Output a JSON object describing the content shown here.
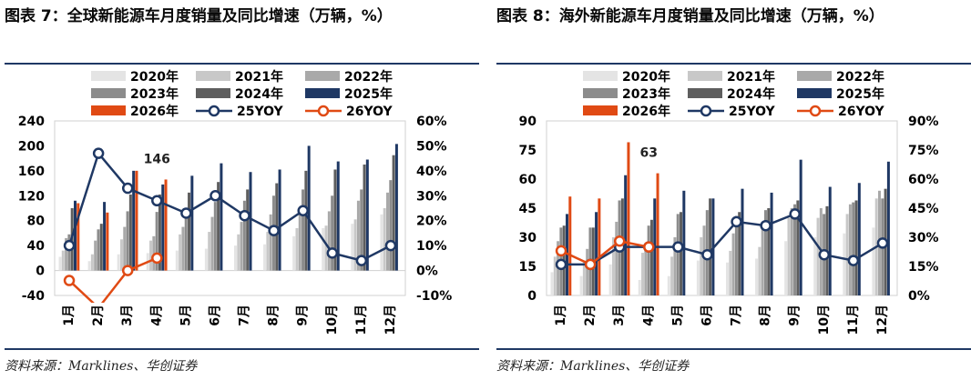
{
  "colors": {
    "2020": "#e4e4e4",
    "2021": "#c8c8c8",
    "2022": "#a9a9a9",
    "2023": "#8c8c8c",
    "2024": "#5e5e5e",
    "2025": "#1f3864",
    "2026": "#e04a14",
    "rule": "#1f3864"
  },
  "chart_data": [
    {
      "type": "bar",
      "title": "图表 7：全球新能源车月度销量及同比增速（万辆，%）",
      "source": "资料来源：Marklines、华创证券",
      "categories": [
        "1月",
        "2月",
        "3月",
        "4月",
        "5月",
        "6月",
        "7月",
        "8月",
        "9月",
        "10月",
        "11月",
        "12月"
      ],
      "ylim": [
        -40,
        240
      ],
      "yticks": [
        "240",
        "200",
        "160",
        "120",
        "80",
        "40",
        "0",
        "-40"
      ],
      "y2lim": [
        -10,
        60
      ],
      "y2ticks": [
        "60%",
        "50%",
        "40%",
        "30%",
        "20%",
        "10%",
        "0%",
        "-10%"
      ],
      "series": [
        {
          "name": "2020年",
          "values": [
            22,
            15,
            26,
            28,
            32,
            35,
            40,
            42,
            55,
            68,
            75,
            90
          ]
        },
        {
          "name": "2021年",
          "values": [
            32,
            26,
            50,
            48,
            58,
            62,
            58,
            62,
            68,
            72,
            82,
            100
          ]
        },
        {
          "name": "2022年",
          "values": [
            52,
            48,
            70,
            55,
            70,
            86,
            78,
            90,
            95,
            95,
            112,
            125
          ]
        },
        {
          "name": "2023年",
          "values": [
            58,
            66,
            95,
            94,
            98,
            110,
            112,
            120,
            130,
            120,
            130,
            145
          ]
        },
        {
          "name": "2024年",
          "values": [
            100,
            75,
            122,
            122,
            125,
            142,
            130,
            140,
            160,
            162,
            170,
            185
          ]
        },
        {
          "name": "2025年",
          "values": [
            112,
            110,
            160,
            138,
            152,
            172,
            158,
            162,
            200,
            175,
            178,
            203
          ]
        },
        {
          "name": "2026年",
          "values": [
            108,
            93,
            160,
            146,
            null,
            null,
            null,
            null,
            null,
            null,
            null,
            null
          ]
        }
      ],
      "yoy": [
        {
          "name": "25YOY",
          "axis": "right",
          "values": [
            10,
            47,
            33,
            28,
            23,
            30,
            22,
            16,
            24,
            7,
            4,
            10
          ]
        },
        {
          "name": "26YOY",
          "axis": "right",
          "values": [
            -4,
            -15,
            0,
            5,
            null,
            null,
            null,
            null,
            null,
            null,
            null,
            null
          ]
        }
      ],
      "annotation": {
        "label": "146",
        "category": "4月"
      }
    },
    {
      "type": "bar",
      "title": "图表 8：海外新能源车月度销量及同比增速（万辆，%）",
      "source": "资料来源：Marklines、华创证券",
      "categories": [
        "1月",
        "2月",
        "3月",
        "4月",
        "5月",
        "6月",
        "7月",
        "8月",
        "9月",
        "10月",
        "11月",
        "12月"
      ],
      "ylim": [
        0,
        90
      ],
      "yticks": [
        "90",
        "75",
        "60",
        "45",
        "30",
        "15",
        "0"
      ],
      "y2lim": [
        0,
        90
      ],
      "y2ticks": [
        "90%",
        "75%",
        "60%",
        "45%",
        "30%",
        "15%",
        "0%"
      ],
      "series": [
        {
          "name": "2020年",
          "values": [
            12,
            10,
            16,
            8,
            10,
            18,
            17,
            19,
            28,
            30,
            32,
            35
          ]
        },
        {
          "name": "2021年",
          "values": [
            20,
            18,
            30,
            22,
            20,
            30,
            23,
            25,
            40,
            40,
            42,
            50
          ]
        },
        {
          "name": "2022年",
          "values": [
            28,
            24,
            38,
            27,
            30,
            36,
            32,
            38,
            45,
            45,
            47,
            54
          ]
        },
        {
          "name": "2023年",
          "values": [
            35,
            35,
            49,
            36,
            42,
            44,
            41,
            44,
            47,
            42,
            48,
            50
          ]
        },
        {
          "name": "2024年",
          "values": [
            36,
            35,
            50,
            39,
            43,
            50,
            43,
            45,
            49,
            46,
            49,
            55
          ]
        },
        {
          "name": "2025年",
          "values": [
            42,
            43,
            62,
            50,
            54,
            50,
            55,
            53,
            70,
            56,
            58,
            69
          ]
        },
        {
          "name": "2026年",
          "values": [
            51,
            50,
            79,
            63,
            null,
            null,
            null,
            null,
            null,
            null,
            null,
            null
          ]
        }
      ],
      "yoy": [
        {
          "name": "25YOY",
          "axis": "right",
          "values": [
            16,
            16,
            25,
            25,
            25,
            21,
            38,
            36,
            42,
            21,
            18,
            27
          ]
        },
        {
          "name": "26YOY",
          "axis": "right",
          "values": [
            23,
            16,
            28,
            25,
            null,
            null,
            null,
            null,
            null,
            null,
            null,
            null
          ]
        }
      ],
      "annotation": {
        "label": "63",
        "category": "4月"
      }
    }
  ]
}
